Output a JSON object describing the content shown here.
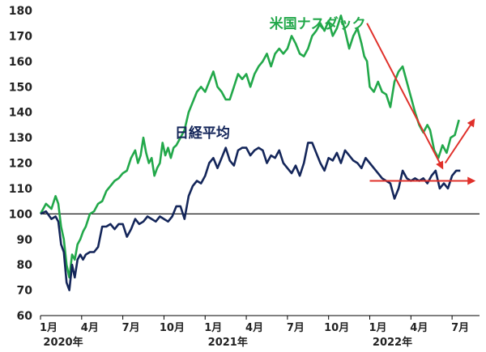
{
  "chart_data": {
    "type": "line",
    "title": "",
    "xlabel": "",
    "ylabel": "",
    "ylim": [
      60,
      180
    ],
    "yticks": [
      60,
      70,
      80,
      90,
      100,
      110,
      120,
      130,
      140,
      150,
      160,
      170,
      180
    ],
    "baseline": 100,
    "grid": false,
    "xtick_labels": [
      {
        "month": 0,
        "label": "1月",
        "year": "2020年"
      },
      {
        "month": 3,
        "label": "4月",
        "year": ""
      },
      {
        "month": 6,
        "label": "7月",
        "year": ""
      },
      {
        "month": 9,
        "label": "10月",
        "year": ""
      },
      {
        "month": 12,
        "label": "1月",
        "year": "2021年"
      },
      {
        "month": 15,
        "label": "4月",
        "year": ""
      },
      {
        "month": 18,
        "label": "7月",
        "year": ""
      },
      {
        "month": 21,
        "label": "10月",
        "year": ""
      },
      {
        "month": 24,
        "label": "1月",
        "year": "2022年"
      },
      {
        "month": 27,
        "label": "4月",
        "year": ""
      },
      {
        "month": 30,
        "label": "7月",
        "year": ""
      }
    ],
    "series": [
      {
        "name": "米国ナスダック",
        "color": "#22a84a",
        "label_at": [
          20.2,
          173
        ],
        "points": [
          [
            0,
            100
          ],
          [
            0.4,
            104
          ],
          [
            0.8,
            102
          ],
          [
            1.1,
            107
          ],
          [
            1.3,
            104
          ],
          [
            1.5,
            95
          ],
          [
            1.7,
            90
          ],
          [
            1.9,
            80
          ],
          [
            2.1,
            75
          ],
          [
            2.3,
            84
          ],
          [
            2.5,
            82
          ],
          [
            2.7,
            88
          ],
          [
            2.9,
            90
          ],
          [
            3.1,
            93
          ],
          [
            3.3,
            95
          ],
          [
            3.6,
            100
          ],
          [
            3.9,
            101
          ],
          [
            4.2,
            104
          ],
          [
            4.5,
            105
          ],
          [
            4.8,
            109
          ],
          [
            5.1,
            111
          ],
          [
            5.4,
            113
          ],
          [
            5.7,
            114
          ],
          [
            6.0,
            116
          ],
          [
            6.3,
            117
          ],
          [
            6.6,
            122
          ],
          [
            6.9,
            125
          ],
          [
            7.1,
            120
          ],
          [
            7.3,
            123
          ],
          [
            7.5,
            130
          ],
          [
            7.7,
            124
          ],
          [
            7.9,
            120
          ],
          [
            8.1,
            122
          ],
          [
            8.3,
            115
          ],
          [
            8.5,
            118
          ],
          [
            8.7,
            120
          ],
          [
            8.9,
            128
          ],
          [
            9.1,
            123
          ],
          [
            9.3,
            126
          ],
          [
            9.5,
            122
          ],
          [
            9.7,
            126
          ],
          [
            9.9,
            127
          ],
          [
            10.2,
            130
          ],
          [
            10.5,
            133
          ],
          [
            10.8,
            140
          ],
          [
            11.1,
            144
          ],
          [
            11.4,
            148
          ],
          [
            11.7,
            150
          ],
          [
            12.0,
            148
          ],
          [
            12.3,
            152
          ],
          [
            12.6,
            156
          ],
          [
            12.9,
            150
          ],
          [
            13.2,
            148
          ],
          [
            13.5,
            145
          ],
          [
            13.8,
            145
          ],
          [
            14.1,
            150
          ],
          [
            14.4,
            155
          ],
          [
            14.7,
            153
          ],
          [
            15.0,
            155
          ],
          [
            15.3,
            150
          ],
          [
            15.6,
            155
          ],
          [
            15.9,
            158
          ],
          [
            16.2,
            160
          ],
          [
            16.5,
            163
          ],
          [
            16.8,
            158
          ],
          [
            17.1,
            163
          ],
          [
            17.4,
            165
          ],
          [
            17.7,
            163
          ],
          [
            18.0,
            165
          ],
          [
            18.3,
            170
          ],
          [
            18.6,
            167
          ],
          [
            18.9,
            163
          ],
          [
            19.2,
            162
          ],
          [
            19.5,
            165
          ],
          [
            19.8,
            170
          ],
          [
            20.1,
            172
          ],
          [
            20.4,
            175
          ],
          [
            20.7,
            172
          ],
          [
            21.0,
            176
          ],
          [
            21.3,
            170
          ],
          [
            21.6,
            173
          ],
          [
            21.9,
            178
          ],
          [
            22.2,
            172
          ],
          [
            22.5,
            165
          ],
          [
            22.8,
            170
          ],
          [
            23.1,
            173
          ],
          [
            23.4,
            167
          ],
          [
            23.6,
            162
          ],
          [
            23.8,
            160
          ],
          [
            24.0,
            150
          ],
          [
            24.3,
            148
          ],
          [
            24.6,
            152
          ],
          [
            24.9,
            148
          ],
          [
            25.2,
            147
          ],
          [
            25.5,
            142
          ],
          [
            25.8,
            152
          ],
          [
            26.1,
            156
          ],
          [
            26.4,
            158
          ],
          [
            26.7,
            152
          ],
          [
            27.0,
            146
          ],
          [
            27.3,
            140
          ],
          [
            27.6,
            135
          ],
          [
            27.9,
            132
          ],
          [
            28.2,
            135
          ],
          [
            28.4,
            133
          ],
          [
            28.7,
            125
          ],
          [
            29.0,
            122
          ],
          [
            29.3,
            127
          ],
          [
            29.6,
            124
          ],
          [
            29.9,
            130
          ],
          [
            30.2,
            131
          ],
          [
            30.5,
            137
          ]
        ]
      },
      {
        "name": "日経平均",
        "color": "#14265a",
        "label_at": [
          11.8,
          130
        ],
        "points": [
          [
            0,
            100
          ],
          [
            0.4,
            101
          ],
          [
            0.8,
            98
          ],
          [
            1.1,
            99
          ],
          [
            1.3,
            97
          ],
          [
            1.5,
            88
          ],
          [
            1.7,
            85
          ],
          [
            1.9,
            73
          ],
          [
            2.1,
            70
          ],
          [
            2.3,
            80
          ],
          [
            2.5,
            75
          ],
          [
            2.7,
            82
          ],
          [
            2.9,
            84
          ],
          [
            3.1,
            82
          ],
          [
            3.3,
            84
          ],
          [
            3.6,
            85
          ],
          [
            3.9,
            85
          ],
          [
            4.2,
            87
          ],
          [
            4.5,
            95
          ],
          [
            4.8,
            95
          ],
          [
            5.1,
            96
          ],
          [
            5.4,
            94
          ],
          [
            5.7,
            96
          ],
          [
            6.0,
            96
          ],
          [
            6.3,
            91
          ],
          [
            6.6,
            94
          ],
          [
            6.9,
            98
          ],
          [
            7.2,
            96
          ],
          [
            7.5,
            97
          ],
          [
            7.8,
            99
          ],
          [
            8.1,
            98
          ],
          [
            8.4,
            97
          ],
          [
            8.7,
            99
          ],
          [
            9.0,
            98
          ],
          [
            9.3,
            97
          ],
          [
            9.6,
            99
          ],
          [
            9.9,
            103
          ],
          [
            10.2,
            103
          ],
          [
            10.5,
            98
          ],
          [
            10.8,
            107
          ],
          [
            11.1,
            111
          ],
          [
            11.4,
            113
          ],
          [
            11.7,
            112
          ],
          [
            12.0,
            115
          ],
          [
            12.3,
            120
          ],
          [
            12.6,
            122
          ],
          [
            12.9,
            118
          ],
          [
            13.2,
            122
          ],
          [
            13.5,
            126
          ],
          [
            13.8,
            121
          ],
          [
            14.1,
            119
          ],
          [
            14.4,
            125
          ],
          [
            14.7,
            126
          ],
          [
            15.0,
            126
          ],
          [
            15.3,
            123
          ],
          [
            15.6,
            125
          ],
          [
            15.9,
            126
          ],
          [
            16.2,
            125
          ],
          [
            16.5,
            120
          ],
          [
            16.8,
            123
          ],
          [
            17.1,
            122
          ],
          [
            17.4,
            125
          ],
          [
            17.7,
            120
          ],
          [
            18.0,
            118
          ],
          [
            18.3,
            116
          ],
          [
            18.6,
            119
          ],
          [
            18.9,
            115
          ],
          [
            19.2,
            120
          ],
          [
            19.5,
            128
          ],
          [
            19.8,
            128
          ],
          [
            20.1,
            124
          ],
          [
            20.4,
            120
          ],
          [
            20.7,
            117
          ],
          [
            21.0,
            122
          ],
          [
            21.3,
            121
          ],
          [
            21.6,
            124
          ],
          [
            21.9,
            120
          ],
          [
            22.2,
            125
          ],
          [
            22.5,
            123
          ],
          [
            22.8,
            121
          ],
          [
            23.1,
            120
          ],
          [
            23.4,
            118
          ],
          [
            23.7,
            122
          ],
          [
            24.0,
            120
          ],
          [
            24.3,
            118
          ],
          [
            24.6,
            116
          ],
          [
            24.9,
            114
          ],
          [
            25.2,
            113
          ],
          [
            25.5,
            112
          ],
          [
            25.8,
            106
          ],
          [
            26.1,
            110
          ],
          [
            26.4,
            117
          ],
          [
            26.7,
            114
          ],
          [
            27.0,
            113
          ],
          [
            27.3,
            114
          ],
          [
            27.6,
            113
          ],
          [
            27.9,
            114
          ],
          [
            28.2,
            112
          ],
          [
            28.5,
            115
          ],
          [
            28.8,
            117
          ],
          [
            29.1,
            110
          ],
          [
            29.4,
            112
          ],
          [
            29.7,
            110
          ],
          [
            30.0,
            115
          ],
          [
            30.3,
            117
          ],
          [
            30.6,
            117
          ]
        ]
      }
    ],
    "annotations": [
      {
        "type": "arrow",
        "color": "#e0302a",
        "from": [
          23.8,
          175
        ],
        "to": [
          29.3,
          118
        ]
      },
      {
        "type": "arrow",
        "color": "#e0302a",
        "from": [
          29.5,
          120
        ],
        "to": [
          31.6,
          137
        ]
      },
      {
        "type": "arrow",
        "color": "#e0302a",
        "from": [
          24.0,
          113
        ],
        "to": [
          31.6,
          113
        ]
      }
    ]
  }
}
